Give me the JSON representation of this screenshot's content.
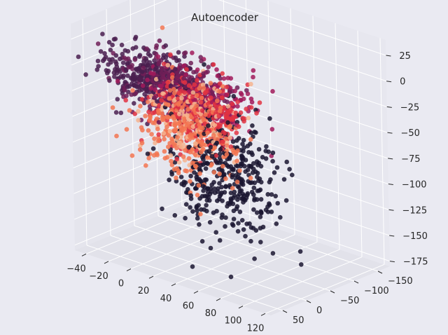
{
  "chart_data": {
    "type": "scatter",
    "subtype": "scatter3d",
    "title": "Autoencoder",
    "xlabel": "",
    "ylabel": "",
    "zlabel": "",
    "xlim": [
      -50,
      125
    ],
    "ylim": [
      -175,
      75
    ],
    "zlim": [
      -180,
      40
    ],
    "x_ticks": [
      "−40",
      "−20",
      "0",
      "20",
      "40",
      "60",
      "80",
      "100",
      "120"
    ],
    "y_ticks": [
      "−150",
      "−100",
      "−50",
      "0",
      "50"
    ],
    "z_ticks": [
      "25",
      "0",
      "−25",
      "−50",
      "−75",
      "−100",
      "−125",
      "−150",
      "−175"
    ],
    "grid": true,
    "legend": "none",
    "colormap": [
      "#1a1530",
      "#4a1f4f",
      "#701f57",
      "#a11a5b",
      "#e13342",
      "#f37651",
      "#f6b48f"
    ],
    "approx_points": 2000,
    "clusters": [
      {
        "color_index": 1,
        "center": [
          5,
          40,
          0
        ],
        "spread": [
          20,
          20,
          12
        ],
        "count": 360
      },
      {
        "color_index": 2,
        "center": [
          20,
          20,
          -8
        ],
        "spread": [
          22,
          20,
          14
        ],
        "count": 300
      },
      {
        "color_index": 3,
        "center": [
          40,
          10,
          -15
        ],
        "spread": [
          20,
          22,
          14
        ],
        "count": 260
      },
      {
        "color_index": 4,
        "center": [
          30,
          -5,
          -35
        ],
        "spread": [
          18,
          22,
          16
        ],
        "count": 280
      },
      {
        "color_index": 5,
        "center": [
          15,
          -15,
          -60
        ],
        "spread": [
          20,
          24,
          22
        ],
        "count": 260
      },
      {
        "color_index": 6,
        "center": [
          20,
          -10,
          -45
        ],
        "spread": [
          16,
          18,
          20
        ],
        "count": 150
      },
      {
        "color_index": 0,
        "center": [
          55,
          0,
          -85
        ],
        "spread": [
          22,
          24,
          30
        ],
        "count": 400
      }
    ]
  }
}
